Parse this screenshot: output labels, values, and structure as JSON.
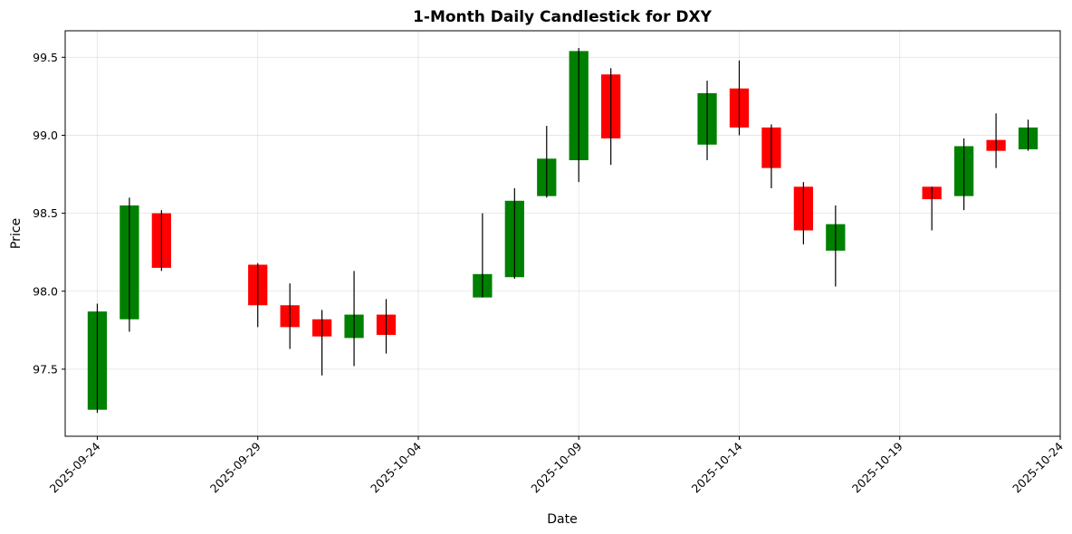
{
  "chart_data": {
    "type": "candlestick",
    "title": "1-Month Daily Candlestick for DXY",
    "xlabel": "Date",
    "ylabel": "Price",
    "xlim": [
      "2025-09-23",
      "2025-10-24"
    ],
    "ylim": [
      97.07,
      99.67
    ],
    "x_ticks": [
      "2025-09-24",
      "2025-09-29",
      "2025-10-04",
      "2025-10-09",
      "2025-10-14",
      "2025-10-19",
      "2025-10-24"
    ],
    "y_ticks": [
      97.5,
      98.0,
      98.5,
      99.0,
      99.5
    ],
    "y_tick_labels": [
      "97.5",
      "98.0",
      "98.5",
      "99.0",
      "99.5"
    ],
    "grid": true,
    "up_color": "#008000",
    "down_color": "#ff0000",
    "wick_color": "#000000",
    "candles": [
      {
        "date": "2025-09-24",
        "open": 97.24,
        "high": 97.92,
        "low": 97.22,
        "close": 97.87
      },
      {
        "date": "2025-09-25",
        "open": 97.82,
        "high": 98.6,
        "low": 97.74,
        "close": 98.55
      },
      {
        "date": "2025-09-26",
        "open": 98.5,
        "high": 98.52,
        "low": 98.13,
        "close": 98.15
      },
      {
        "date": "2025-09-29",
        "open": 98.17,
        "high": 98.18,
        "low": 97.77,
        "close": 97.91
      },
      {
        "date": "2025-09-30",
        "open": 97.91,
        "high": 98.05,
        "low": 97.63,
        "close": 97.77
      },
      {
        "date": "2025-10-01",
        "open": 97.82,
        "high": 97.88,
        "low": 97.46,
        "close": 97.71
      },
      {
        "date": "2025-10-02",
        "open": 97.7,
        "high": 98.13,
        "low": 97.52,
        "close": 97.85
      },
      {
        "date": "2025-10-03",
        "open": 97.85,
        "high": 97.95,
        "low": 97.6,
        "close": 97.72
      },
      {
        "date": "2025-10-06",
        "open": 97.96,
        "high": 98.5,
        "low": 97.96,
        "close": 98.11
      },
      {
        "date": "2025-10-07",
        "open": 98.09,
        "high": 98.66,
        "low": 98.08,
        "close": 98.58
      },
      {
        "date": "2025-10-08",
        "open": 98.61,
        "high": 99.06,
        "low": 98.6,
        "close": 98.85
      },
      {
        "date": "2025-10-09",
        "open": 98.84,
        "high": 99.56,
        "low": 98.7,
        "close": 99.54
      },
      {
        "date": "2025-10-10",
        "open": 99.39,
        "high": 99.43,
        "low": 98.81,
        "close": 98.98
      },
      {
        "date": "2025-10-13",
        "open": 98.94,
        "high": 99.35,
        "low": 98.84,
        "close": 99.27
      },
      {
        "date": "2025-10-14",
        "open": 99.3,
        "high": 99.48,
        "low": 99.0,
        "close": 99.05
      },
      {
        "date": "2025-10-15",
        "open": 99.05,
        "high": 99.07,
        "low": 98.66,
        "close": 98.79
      },
      {
        "date": "2025-10-16",
        "open": 98.67,
        "high": 98.7,
        "low": 98.3,
        "close": 98.39
      },
      {
        "date": "2025-10-17",
        "open": 98.26,
        "high": 98.55,
        "low": 98.03,
        "close": 98.43
      },
      {
        "date": "2025-10-20",
        "open": 98.67,
        "high": 98.67,
        "low": 98.39,
        "close": 98.59
      },
      {
        "date": "2025-10-21",
        "open": 98.61,
        "high": 98.98,
        "low": 98.52,
        "close": 98.93
      },
      {
        "date": "2025-10-22",
        "open": 98.97,
        "high": 99.14,
        "low": 98.79,
        "close": 98.9
      },
      {
        "date": "2025-10-23",
        "open": 98.91,
        "high": 99.1,
        "low": 98.9,
        "close": 99.05
      }
    ]
  }
}
